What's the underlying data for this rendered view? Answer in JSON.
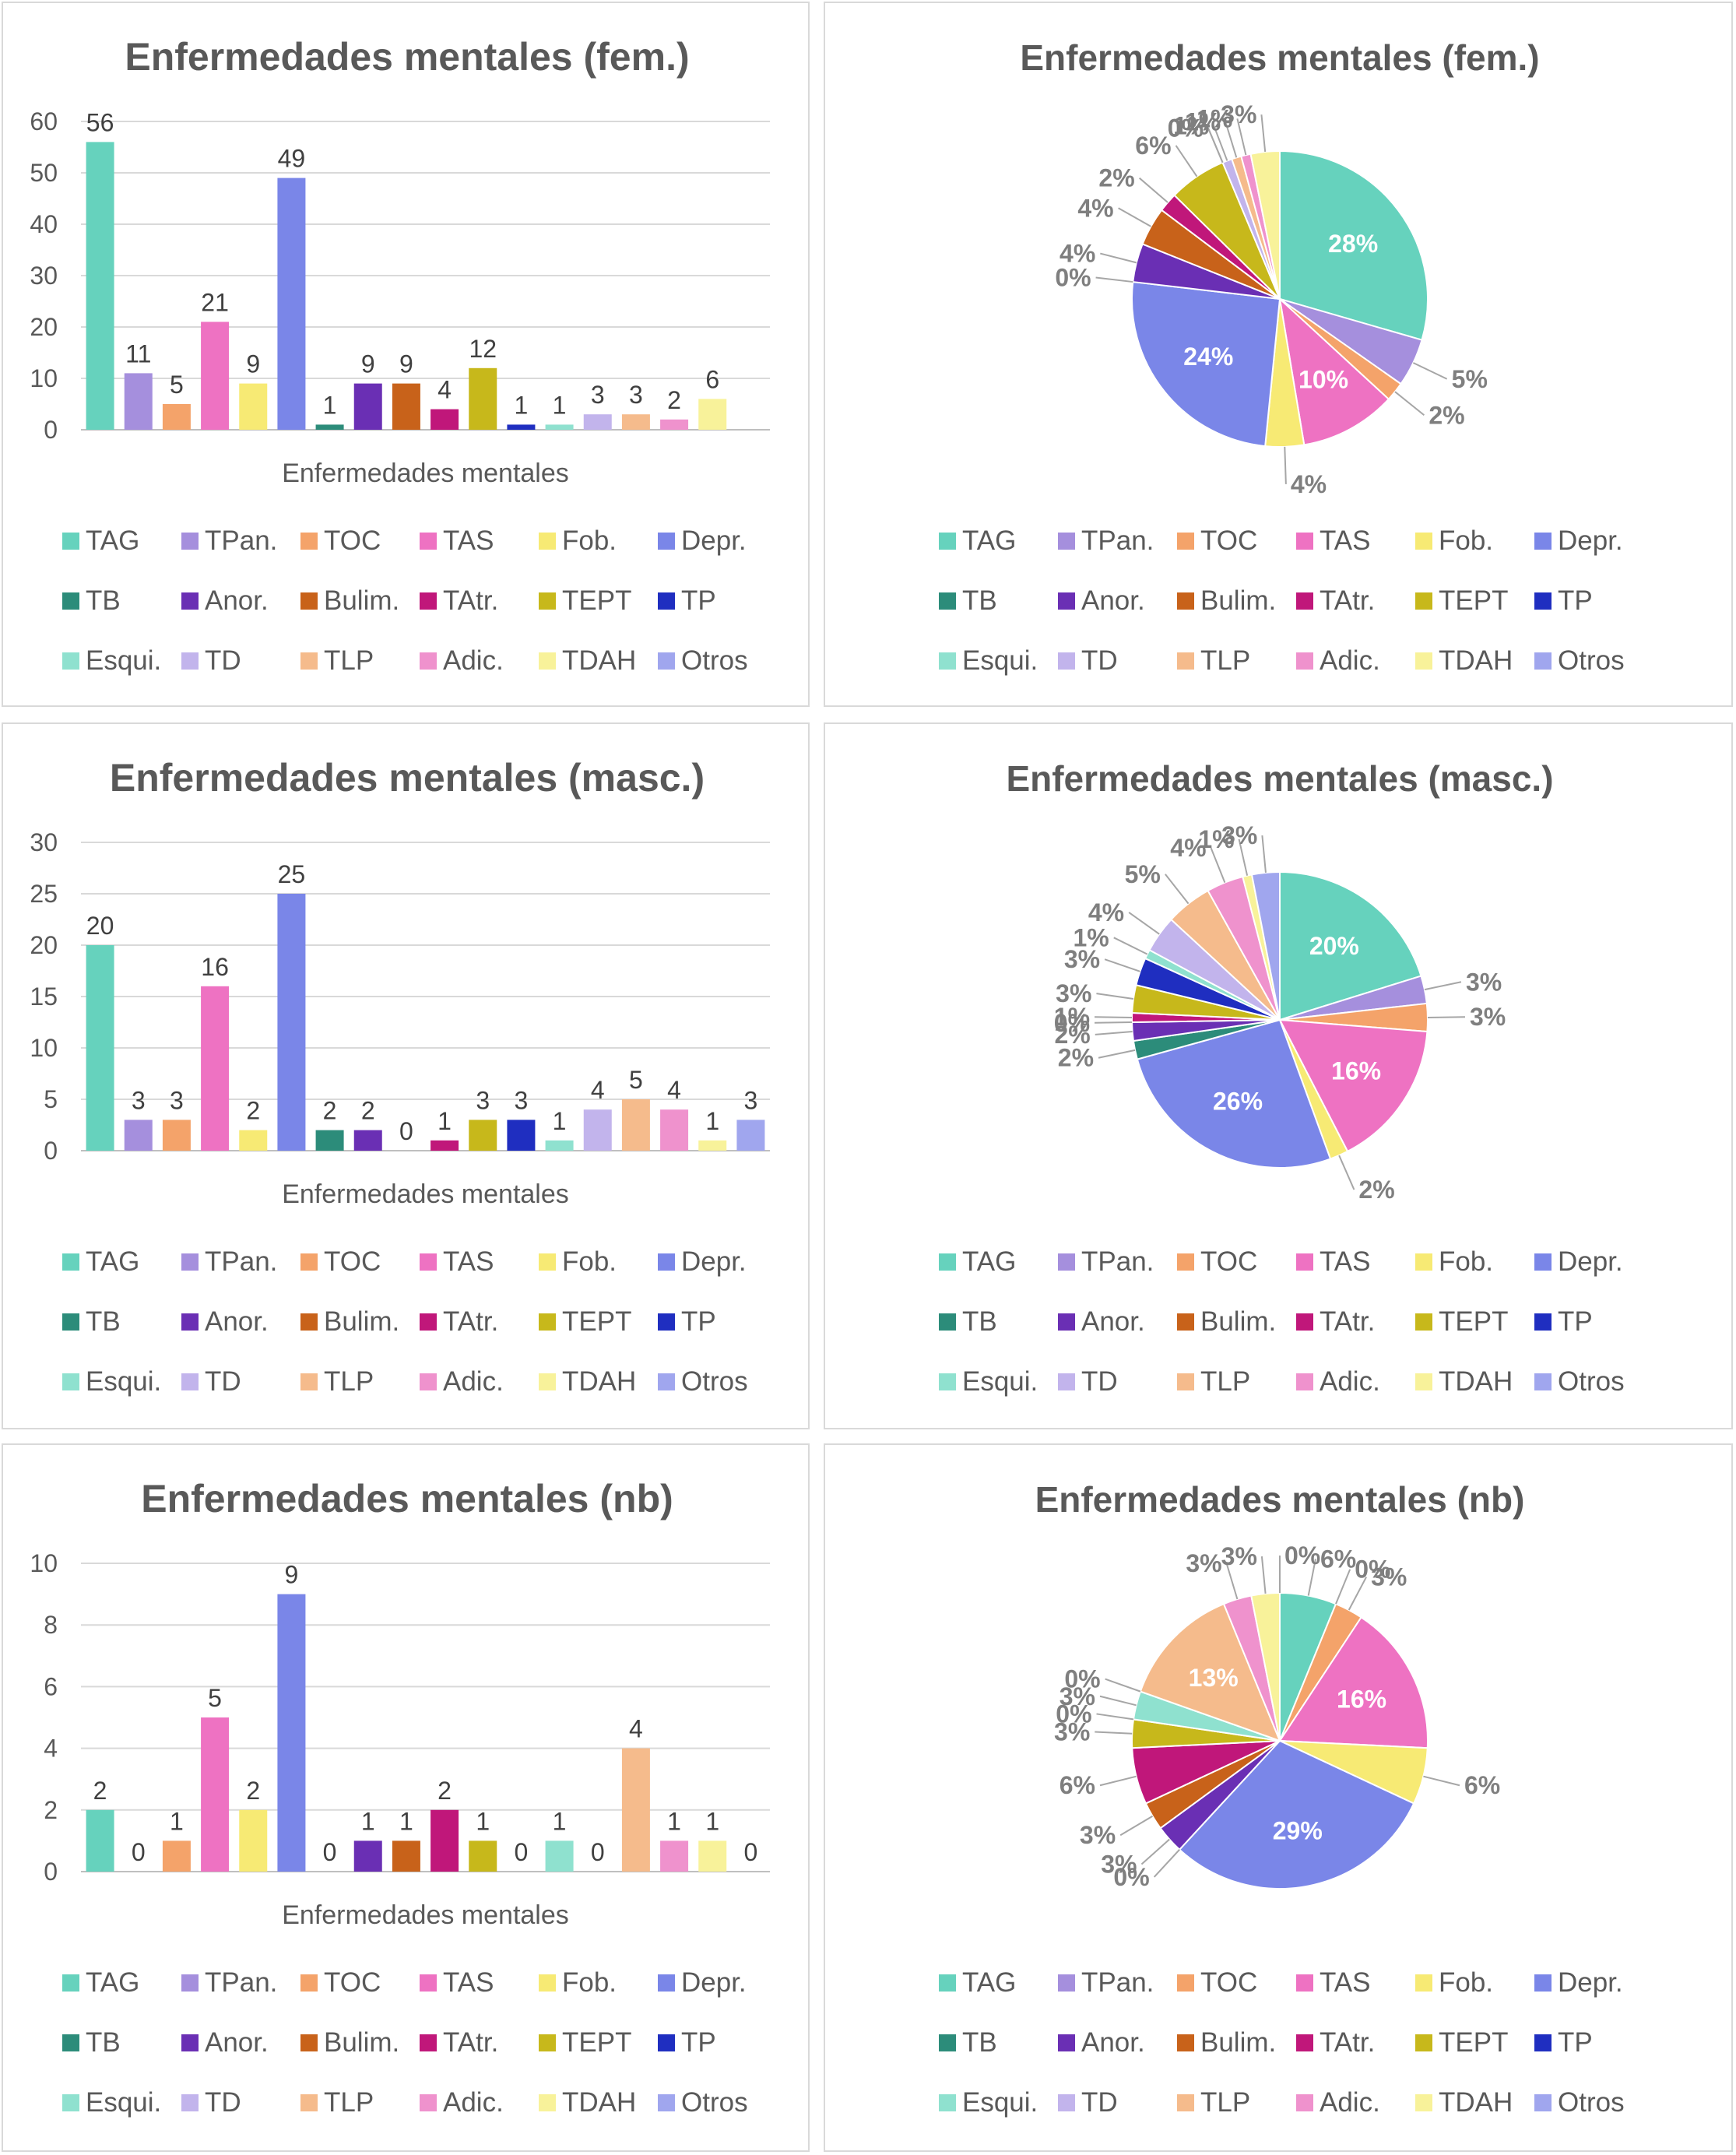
{
  "categories": [
    "TAG",
    "TPan.",
    "TOC",
    "TAS",
    "Fob.",
    "Depr.",
    "TB",
    "Anor.",
    "Bulim.",
    "TAtr.",
    "TEPT",
    "TP",
    "Esqui.",
    "TD",
    "TLP",
    "Adic.",
    "TDAH",
    "Otros"
  ],
  "colors": [
    "#66D2BD",
    "#A58FDD",
    "#F4A36A",
    "#EE72C2",
    "#F7EA74",
    "#7A86E8",
    "#2C8C7A",
    "#6A2FB4",
    "#C8621A",
    "#C0177A",
    "#C7B81B",
    "#1F2EC0",
    "#8FE1CF",
    "#C2B4EC",
    "#F5BB8C",
    "#EF92CD",
    "#F8F29A",
    "#A0A6EE"
  ],
  "chart_data": [
    {
      "type": "bar",
      "title": "Enfermedades mentales (fem.)",
      "xlabel": "Enfermedades mentales",
      "ylabel": "",
      "ylim": [
        0,
        60
      ],
      "yticks": [
        0,
        10,
        20,
        30,
        40,
        50,
        60
      ],
      "grid": true,
      "legend": "bottom",
      "values": [
        56,
        11,
        5,
        21,
        9,
        49,
        1,
        9,
        9,
        4,
        12,
        1,
        1,
        3,
        3,
        2,
        6,
        null
      ]
    },
    {
      "type": "pie",
      "title": "Enfermedades mentales (fem.)",
      "legend": "bottom",
      "values": [
        28,
        5,
        2,
        10,
        4,
        24,
        0,
        4,
        4,
        2,
        6,
        0,
        0,
        1,
        1,
        1,
        3
      ],
      "labels": [
        "28%",
        "5%",
        "2%",
        "10%",
        "4%",
        "24%",
        "0%",
        "4%",
        "4%",
        "2%",
        "6%",
        "0%",
        "0%",
        "1%",
        "1%",
        "1%",
        "3%"
      ]
    },
    {
      "type": "bar",
      "title": "Enfermedades mentales (masc.)",
      "xlabel": "Enfermedades mentales",
      "ylabel": "",
      "ylim": [
        0,
        30
      ],
      "yticks": [
        0,
        5,
        10,
        15,
        20,
        25,
        30
      ],
      "grid": true,
      "legend": "bottom",
      "values": [
        20,
        3,
        3,
        16,
        2,
        25,
        2,
        2,
        0,
        1,
        3,
        3,
        1,
        4,
        5,
        4,
        1,
        3
      ]
    },
    {
      "type": "pie",
      "title": "Enfermedades mentales (masc.)",
      "legend": "bottom",
      "values": [
        20,
        3,
        3,
        16,
        2,
        26,
        2,
        2,
        0,
        1,
        3,
        3,
        1,
        4,
        5,
        4,
        1,
        3
      ],
      "labels": [
        "20%",
        "3%",
        "3%",
        "16%",
        "2%",
        "26%",
        "2%",
        "2%",
        "0%",
        "1%",
        "3%",
        "3%",
        "1%",
        "4%",
        "5%",
        "4%",
        "1%",
        "3%"
      ]
    },
    {
      "type": "bar",
      "title": "Enfermedades mentales (nb)",
      "xlabel": "Enfermedades mentales",
      "ylabel": "",
      "ylim": [
        0,
        10
      ],
      "yticks": [
        0,
        2,
        4,
        6,
        8,
        10
      ],
      "grid": true,
      "legend": "bottom",
      "values": [
        2,
        0,
        1,
        5,
        2,
        9,
        0,
        1,
        1,
        2,
        1,
        0,
        1,
        0,
        4,
        1,
        1,
        0
      ]
    },
    {
      "type": "pie",
      "title": "Enfermedades mentales (nb)",
      "legend": "bottom",
      "values": [
        6,
        0,
        3,
        16,
        6,
        29,
        0,
        3,
        3,
        6,
        3,
        0,
        3,
        0,
        13,
        3,
        3,
        0
      ],
      "labels": [
        "6%",
        "0%",
        "3%",
        "16%",
        "6%",
        "29%",
        "0%",
        "3%",
        "3%",
        "6%",
        "3%",
        "0%",
        "3%",
        "0%",
        "13%",
        "3%",
        "3%",
        "0%"
      ]
    }
  ]
}
